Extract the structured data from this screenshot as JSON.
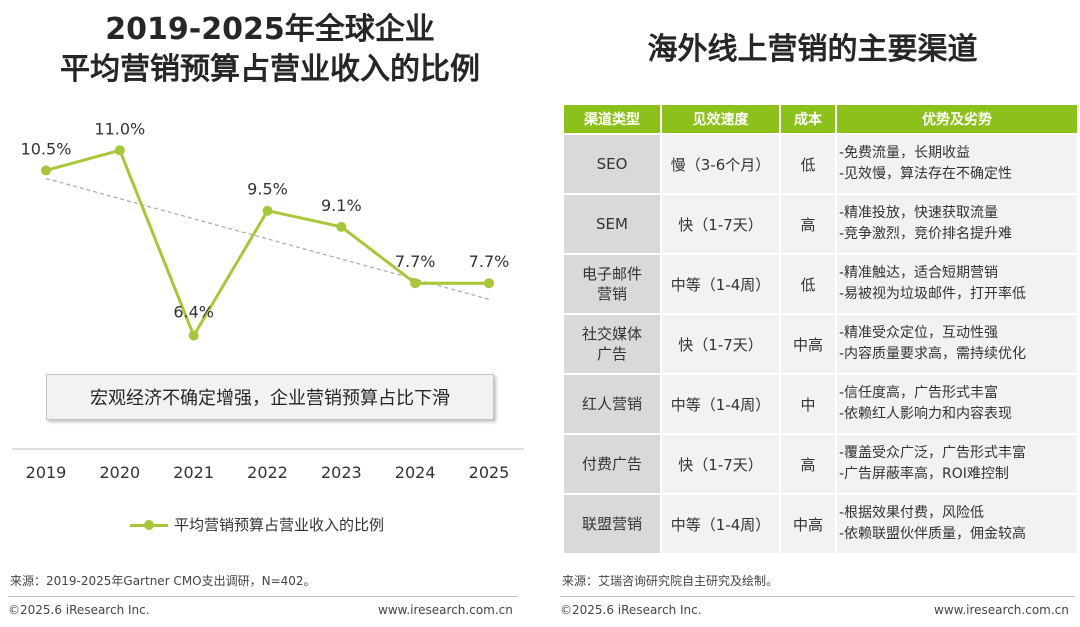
{
  "left_title_line1": "2019-2025年全球企业",
  "left_title_line2": "平均营销预算占营业收入的比例",
  "right_title": "海外线上营销的主要渠道",
  "chart_note": "宏观经济不确定增强，企业营销预算占比下滑",
  "chart_data": {
    "type": "line",
    "categories": [
      "2019",
      "2020",
      "2021",
      "2022",
      "2023",
      "2024",
      "2025"
    ],
    "series": [
      {
        "name": "平均营销预算占营业收入的比例",
        "values": [
          10.5,
          11.0,
          6.4,
          9.5,
          9.1,
          7.7,
          7.7
        ],
        "labels": [
          "10.5%",
          "11.0%",
          "6.4%",
          "9.5%",
          "9.1%",
          "7.7%",
          "7.7%"
        ],
        "color": "#a8c63a"
      }
    ],
    "trendline": {
      "style": "dashed",
      "color": "#aaaaaa",
      "from": 10.3,
      "to": 7.3
    },
    "ylim": [
      5,
      12
    ],
    "grid": false,
    "legend_placement": "bottom"
  },
  "legend_label": "平均营销预算占营业收入的比例",
  "left_source": "来源：2019-2025年Gartner CMO支出调研，N=402。",
  "left_footer_left": "©2025.6 iResearch Inc.",
  "left_footer_right": "www.iresearch.com.cn",
  "table": {
    "headers": [
      "渠道类型",
      "见效速度",
      "成本",
      "优势及劣势"
    ],
    "rows": [
      {
        "type": [
          "SEO"
        ],
        "speed": "慢（3-6个月）",
        "cost": "低",
        "pros": [
          "-免费流量，长期收益",
          "-见效慢，算法存在不确定性"
        ]
      },
      {
        "type": [
          "SEM"
        ],
        "speed": "快（1-7天）",
        "cost": "高",
        "pros": [
          "-精准投放，快速获取流量",
          "-竞争激烈，竞价排名提升难"
        ]
      },
      {
        "type": [
          "电子邮件",
          "营销"
        ],
        "speed": "中等（1-4周）",
        "cost": "低",
        "pros": [
          "-精准触达，适合短期营销",
          "-易被视为垃圾邮件，打开率低"
        ]
      },
      {
        "type": [
          "社交媒体",
          "广告"
        ],
        "speed": "快（1-7天）",
        "cost": "中高",
        "pros": [
          "-精准受众定位，互动性强",
          "-内容质量要求高，需持续优化"
        ]
      },
      {
        "type": [
          "红人营销"
        ],
        "speed": "中等（1-4周）",
        "cost": "中",
        "pros": [
          "-信任度高，广告形式丰富",
          "-依赖红人影响力和内容表现"
        ]
      },
      {
        "type": [
          "付费广告"
        ],
        "speed": "快（1-7天）",
        "cost": "高",
        "pros": [
          "-覆盖受众广泛，广告形式丰富",
          "-广告屏蔽率高，ROI难控制"
        ]
      },
      {
        "type": [
          "联盟营销"
        ],
        "speed": "中等（1-4周）",
        "cost": "中高",
        "pros": [
          "-根据效果付费，风险低",
          "-依赖联盟伙伴质量，佣金较高"
        ]
      }
    ]
  },
  "right_source": "来源：艾瑞咨询研究院自主研究及绘制。",
  "right_footer_left": "©2025.6 iResearch Inc.",
  "right_footer_right": "www.iresearch.com.cn"
}
